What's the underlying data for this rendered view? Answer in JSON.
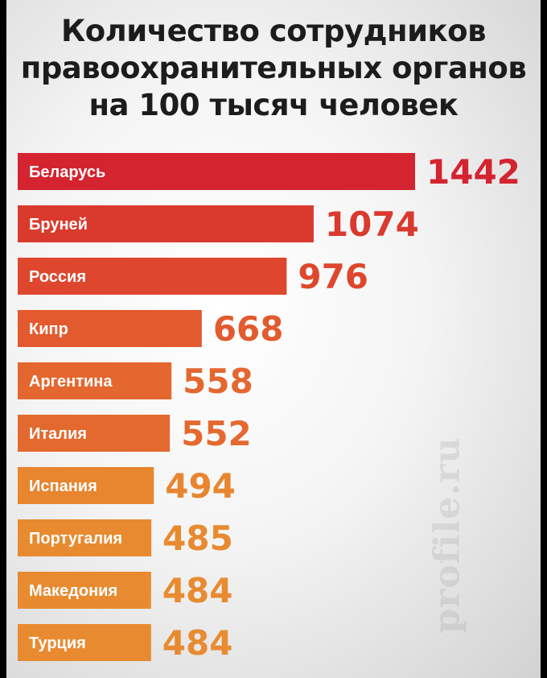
{
  "title_lines": [
    "Количество сотрудников",
    "правоохранительных органов",
    "на 100 тысяч человек"
  ],
  "watermark": "profile.ru",
  "chart_data": {
    "type": "bar",
    "orientation": "horizontal",
    "title": "Количество сотрудников правоохранительных органов на 100 тысяч человек",
    "categories": [
      "Беларусь",
      "Бруней",
      "Россия",
      "Кипр",
      "Аргентина",
      "Италия",
      "Испания",
      "Португалия",
      "Македония",
      "Турция"
    ],
    "values": [
      1442,
      1074,
      976,
      668,
      558,
      552,
      494,
      485,
      484,
      484
    ],
    "colors": [
      "#d42430",
      "#da3a2e",
      "#de472d",
      "#e25a2e",
      "#e4672f",
      "#e4692f",
      "#e8852f",
      "#e88a30",
      "#e88b30",
      "#e88b30"
    ],
    "grid": false,
    "legend": "none"
  }
}
